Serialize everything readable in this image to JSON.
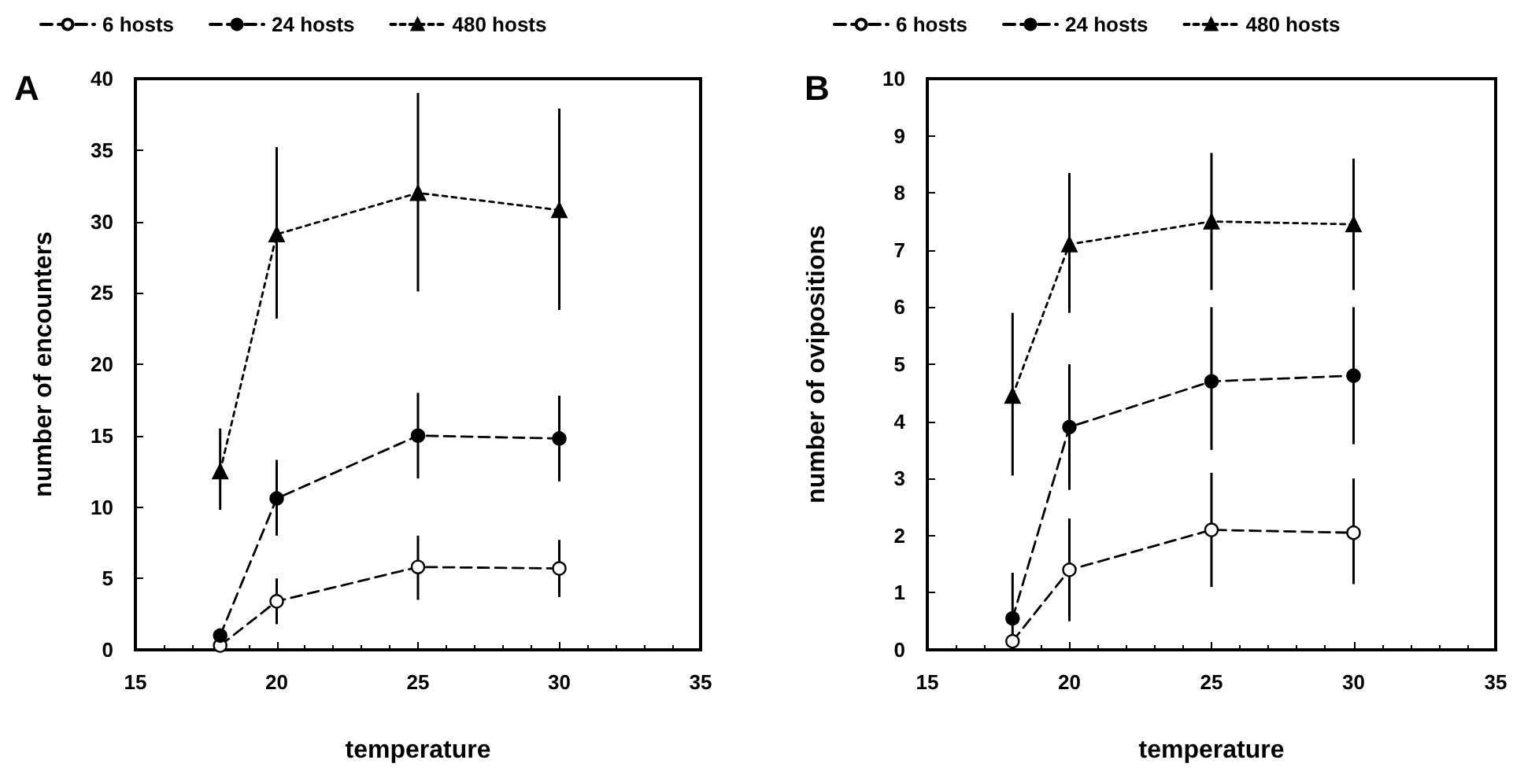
{
  "chart_data": [
    {
      "type": "line",
      "title": "A",
      "xlabel": "temperature",
      "ylabel": "number of encounters",
      "x": [
        18,
        20,
        25,
        30
      ],
      "xlim": [
        15,
        35
      ],
      "xticks": [
        15,
        20,
        25,
        30,
        35
      ],
      "ylim": [
        0,
        40
      ],
      "yticks": [
        0,
        5,
        10,
        15,
        20,
        25,
        30,
        35,
        40
      ],
      "grid": false,
      "legend": "top",
      "series": [
        {
          "name": "6 hosts",
          "color": "#000000",
          "colors": [
            "#ffffff",
            "#ffffff",
            "#ffffff",
            "#ffffff"
          ],
          "marker": "circle",
          "line_style": "dashed",
          "values": [
            0.3,
            3.4,
            5.8,
            5.7
          ],
          "errors": [
            null,
            [
              1.8,
              5.0
            ],
            [
              3.5,
              8.0
            ],
            [
              3.7,
              7.7
            ]
          ]
        },
        {
          "name": "24 hosts",
          "color": "#000000",
          "marker": "circle",
          "line_style": "dashed",
          "values": [
            1.0,
            10.6,
            15.0,
            14.8
          ],
          "errors": [
            null,
            [
              8.0,
              13.3
            ],
            [
              12.0,
              18.0
            ],
            [
              11.8,
              17.8
            ]
          ]
        },
        {
          "name": "480 hosts",
          "color": "#000000",
          "marker": "triangle",
          "line_style": "dotted",
          "values": [
            12.5,
            29.1,
            32.0,
            30.8
          ],
          "errors": [
            [
              9.8,
              15.5
            ],
            [
              23.2,
              35.2
            ],
            [
              25.1,
              39.0
            ],
            [
              23.8,
              37.9
            ]
          ]
        }
      ]
    },
    {
      "type": "line",
      "title": "B",
      "xlabel": "temperature",
      "ylabel": "number of ovipositions",
      "x": [
        18,
        20,
        25,
        30
      ],
      "xlim": [
        15,
        35
      ],
      "xticks": [
        15,
        20,
        25,
        30,
        35
      ],
      "ylim": [
        0,
        10
      ],
      "yticks": [
        0,
        1,
        2,
        3,
        4,
        5,
        6,
        7,
        8,
        9,
        10
      ],
      "grid": false,
      "legend": "top",
      "series": [
        {
          "name": "6 hosts",
          "color": "#000000",
          "colors": [
            "#ffffff",
            "#ffffff",
            "#ffffff",
            "#ffffff"
          ],
          "marker": "circle",
          "line_style": "dashed",
          "values": [
            0.15,
            1.4,
            2.1,
            2.05
          ],
          "errors": [
            null,
            [
              0.5,
              2.3
            ],
            [
              1.1,
              3.1
            ],
            [
              1.15,
              3.0
            ]
          ]
        },
        {
          "name": "24 hosts",
          "color": "#000000",
          "marker": "circle",
          "line_style": "dashed",
          "values": [
            0.55,
            3.9,
            4.7,
            4.8
          ],
          "errors": [
            [
              0.1,
              1.35
            ],
            [
              2.8,
              5.0
            ],
            [
              3.5,
              6.0
            ],
            [
              3.6,
              6.0
            ]
          ]
        },
        {
          "name": "480 hosts",
          "color": "#000000",
          "marker": "triangle",
          "line_style": "dotted",
          "values": [
            4.45,
            7.1,
            7.5,
            7.45
          ],
          "errors": [
            [
              3.05,
              5.9
            ],
            [
              5.9,
              8.35
            ],
            [
              6.3,
              8.7
            ],
            [
              6.3,
              8.6
            ]
          ]
        }
      ]
    }
  ]
}
